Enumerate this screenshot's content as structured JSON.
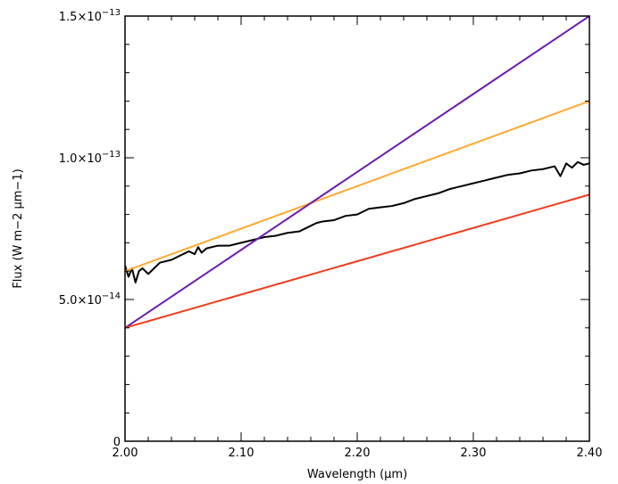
{
  "chart_data": {
    "type": "line",
    "title": "",
    "xlabel": "Wavelength (μm)",
    "ylabel": "Flux (W m−2 μm−1)",
    "xlim": [
      2.0,
      2.4
    ],
    "ylim": [
      0,
      1.5e-13
    ],
    "grid": false,
    "x_ticks": [
      {
        "value": 2.0,
        "label": "2.00"
      },
      {
        "value": 2.1,
        "label": "2.10"
      },
      {
        "value": 2.2,
        "label": "2.20"
      },
      {
        "value": 2.3,
        "label": "2.30"
      },
      {
        "value": 2.4,
        "label": "2.40"
      }
    ],
    "y_ticks": [
      {
        "value": 0,
        "label": "0"
      },
      {
        "value": 5e-14,
        "label": "5.0×10−14"
      },
      {
        "value": 1e-13,
        "label": "1.0×10−13"
      },
      {
        "value": 1.5e-13,
        "label": "1.5×10−13"
      }
    ],
    "series": [
      {
        "color": "#000000",
        "x": [
          2.0,
          2.003,
          2.006,
          2.009,
          2.012,
          2.015,
          2.02,
          2.025,
          2.03,
          2.04,
          2.05,
          2.055,
          2.06,
          2.063,
          2.066,
          2.07,
          2.08,
          2.09,
          2.1,
          2.11,
          2.12,
          2.13,
          2.14,
          2.15,
          2.16,
          2.165,
          2.17,
          2.18,
          2.19,
          2.2,
          2.21,
          2.22,
          2.23,
          2.24,
          2.25,
          2.26,
          2.27,
          2.28,
          2.29,
          2.3,
          2.31,
          2.32,
          2.33,
          2.34,
          2.35,
          2.36,
          2.37,
          2.375,
          2.38,
          2.385,
          2.39,
          2.395,
          2.4
        ],
        "y": [
          6.2e-14,
          5.8e-14,
          6.1e-14,
          5.6e-14,
          6e-14,
          6.1e-14,
          5.9e-14,
          6.1e-14,
          6.3e-14,
          6.4e-14,
          6.6e-14,
          6.7e-14,
          6.6e-14,
          6.85e-14,
          6.65e-14,
          6.8e-14,
          6.9e-14,
          6.9e-14,
          7e-14,
          7.1e-14,
          7.2e-14,
          7.25e-14,
          7.35e-14,
          7.4e-14,
          7.6e-14,
          7.7e-14,
          7.75e-14,
          7.8e-14,
          7.95e-14,
          8e-14,
          8.2e-14,
          8.25e-14,
          8.3e-14,
          8.4e-14,
          8.55e-14,
          8.65e-14,
          8.75e-14,
          8.9e-14,
          9e-14,
          9.1e-14,
          9.2e-14,
          9.3e-14,
          9.4e-14,
          9.45e-14,
          9.55e-14,
          9.6e-14,
          9.7e-14,
          9.35e-14,
          9.8e-14,
          9.65e-14,
          9.85e-14,
          9.75e-14,
          9.8e-14
        ]
      },
      {
        "color": "#ffa830",
        "x": [
          2.0,
          2.4
        ],
        "y": [
          6e-14,
          1.2e-13
        ]
      },
      {
        "color": "#6a1cb0",
        "x": [
          2.0,
          2.4
        ],
        "y": [
          4e-14,
          1.5e-13
        ]
      },
      {
        "color": "#f23a1a",
        "x": [
          2.0,
          2.4
        ],
        "y": [
          4e-14,
          8.7e-14
        ]
      }
    ]
  }
}
